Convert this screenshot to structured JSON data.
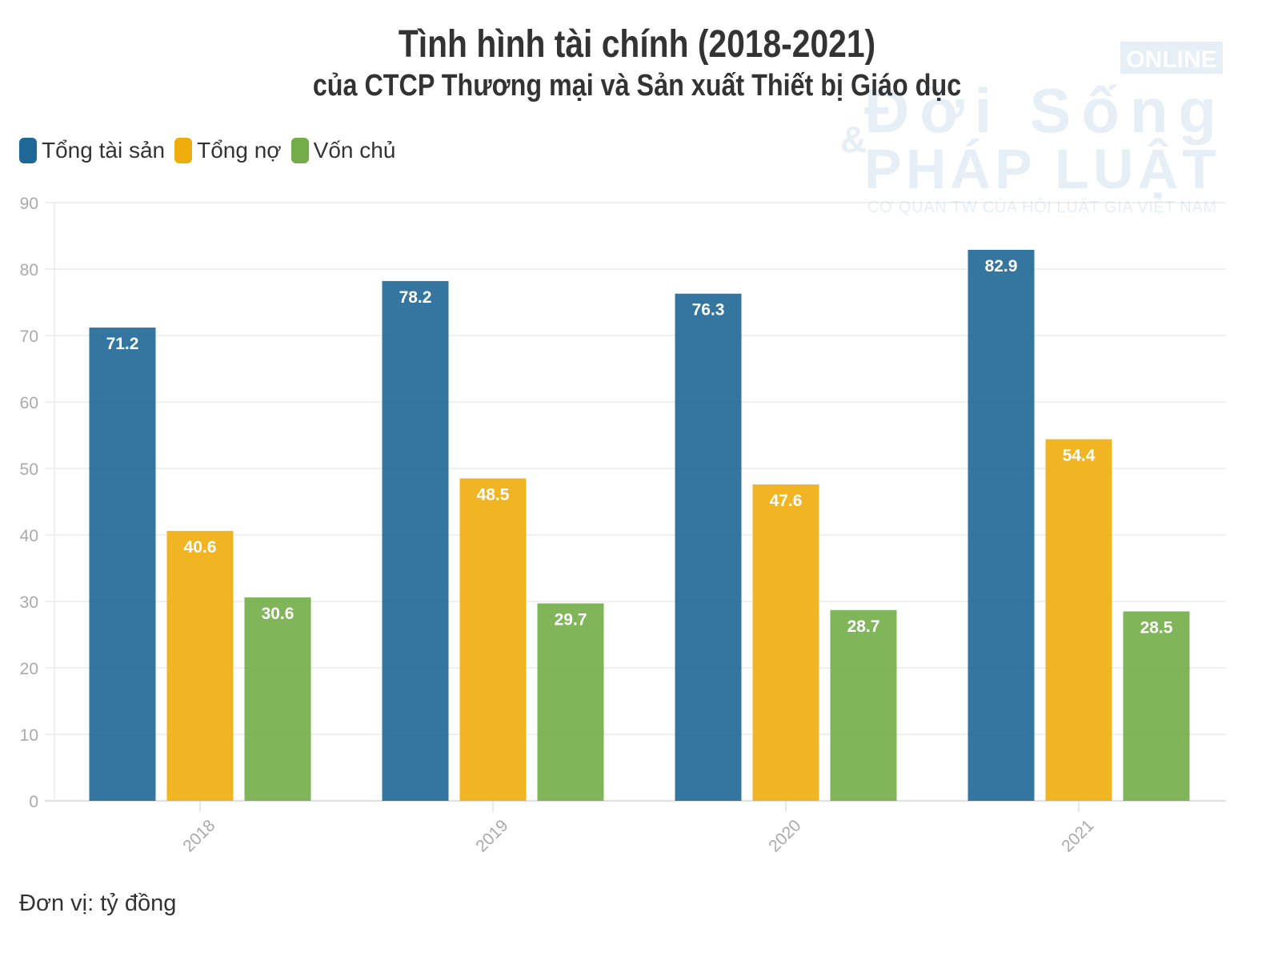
{
  "watermark": {
    "line1": "ONLINE",
    "line2": "Đời Sống",
    "line3": "PHÁP LUẬT",
    "line4": "CƠ QUAN TW CỦA HỘI LUẬT GIA VIỆT NAM",
    "color": "#9dc3dc"
  },
  "chart_data": {
    "type": "bar",
    "title": "Tình hình tài chính (2018-2021)",
    "subtitle": "của CTCP Thương mại và Sản xuất Thiết bị Giáo dục",
    "categories": [
      "2018",
      "2019",
      "2020",
      "2021"
    ],
    "series": [
      {
        "name": "Tổng tài sản",
        "color": "#1f6796",
        "values": [
          71.2,
          78.2,
          76.3,
          82.9
        ]
      },
      {
        "name": "Tổng nợ",
        "color": "#efad0c",
        "values": [
          40.6,
          48.5,
          47.6,
          54.4
        ]
      },
      {
        "name": "Vốn chủ",
        "color": "#72ad47",
        "values": [
          30.6,
          29.7,
          28.7,
          28.5
        ]
      }
    ],
    "yticks": [
      "0",
      "10",
      "20",
      "30",
      "40",
      "50",
      "60",
      "70",
      "80",
      "90"
    ],
    "ylim": [
      0,
      90
    ],
    "grid": true,
    "legend": "top-left",
    "note": "Đơn vị: tỷ đồng"
  }
}
